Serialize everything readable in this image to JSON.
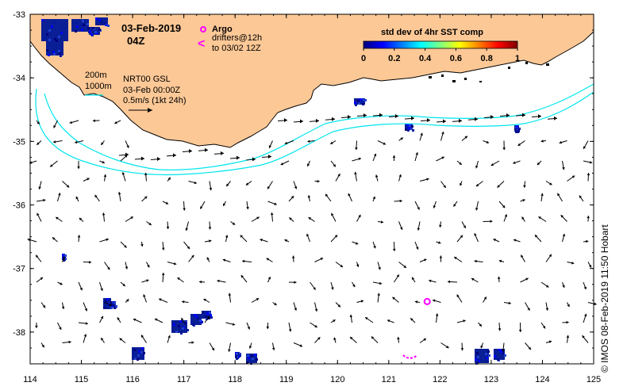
{
  "map": {
    "date": "03-Feb-2019",
    "hour": "04Z",
    "argo_label": "Argo",
    "drifter_label_1": "drifters@12h",
    "drifter_label_2": "to 03/02 12Z",
    "drifter_symbol": "<",
    "depth_200": "200m",
    "depth_1000": "1000m",
    "product_line_1": "NRT00 GSL",
    "product_line_2": "03-Feb 00:00Z",
    "vector_scale": "0.5m/s (1kt 24h)",
    "colorbar_title": "std dev of 4hr SST comp",
    "colorbar_ticks": [
      "0",
      "0.2",
      "0.4",
      "0.6",
      "0.8",
      "1"
    ],
    "colorbar_colors": [
      "#00007f",
      "#0000ff",
      "#007fff",
      "#00ffff",
      "#7fff7f",
      "#ffff00",
      "#ff7f00",
      "#ff0000",
      "#7f0000"
    ],
    "x_ticks": [
      "114",
      "115",
      "116",
      "117",
      "118",
      "119",
      "120",
      "121",
      "122",
      "123",
      "124",
      "125"
    ],
    "y_ticks": [
      "-33",
      "-34",
      "-35",
      "-36",
      "-37",
      "-38"
    ],
    "lon_range": [
      114,
      125
    ],
    "lat_range": [
      -38.5,
      -33
    ],
    "credit": "© IMOS 08-Feb-2019 11:50 Hobart",
    "colors": {
      "land": "#fcc896",
      "isobath": "#00e5ee",
      "argo": "#ff00ff",
      "sst_patch": "#0a1e96"
    },
    "argo_float": {
      "lon": 121.75,
      "lat": -37.52
    }
  }
}
